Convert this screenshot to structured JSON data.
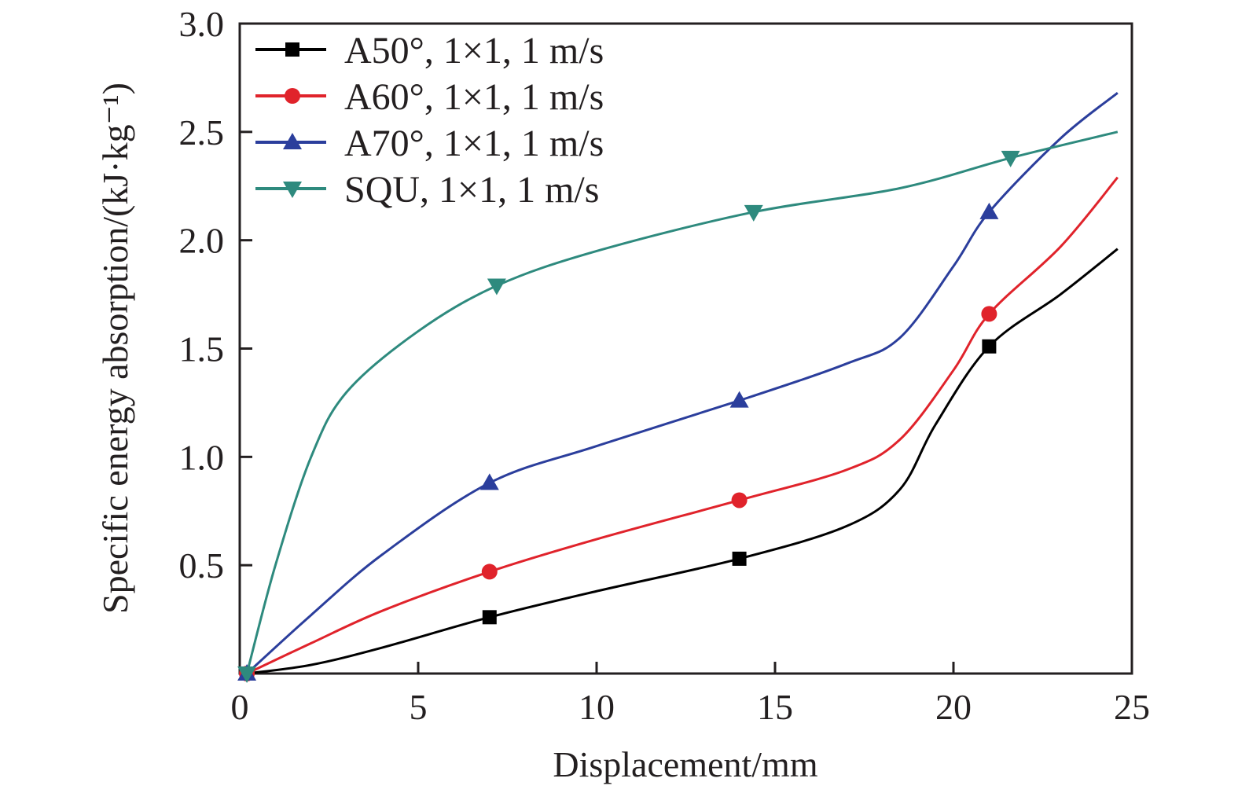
{
  "chart_data": {
    "type": "line",
    "title": "",
    "xlabel": "Displacement/mm",
    "ylabel": "Specific energy absorption/(kJ·kg⁻¹)",
    "xlim": [
      0,
      25
    ],
    "ylim": [
      0,
      3.0
    ],
    "xticks": [
      "0",
      "5",
      "10",
      "15",
      "20",
      "25"
    ],
    "yticks": [
      "0.5",
      "1.0",
      "1.5",
      "2.0",
      "2.5",
      "3.0"
    ],
    "grid": false,
    "legend_position": "top-left",
    "series": [
      {
        "name": "A50°, 1×1, 1 m/s",
        "color": "#000000",
        "marker": "square",
        "x": [
          0.2,
          2,
          4,
          7,
          10,
          14,
          17,
          18.5,
          19.5,
          21,
          23,
          24.6
        ],
        "y": [
          0,
          0.04,
          0.12,
          0.26,
          0.38,
          0.53,
          0.68,
          0.85,
          1.15,
          1.51,
          1.75,
          1.96
        ],
        "markers_x": [
          0.2,
          7,
          14,
          21
        ],
        "markers_y": [
          0,
          0.26,
          0.53,
          1.51
        ]
      },
      {
        "name": "A60°, 1×1, 1 m/s",
        "color": "#e0232b",
        "marker": "circle",
        "x": [
          0.2,
          2,
          4,
          7,
          10,
          14,
          17,
          18.5,
          20,
          21,
          23,
          24.6
        ],
        "y": [
          0,
          0.14,
          0.29,
          0.47,
          0.62,
          0.8,
          0.94,
          1.08,
          1.4,
          1.66,
          1.97,
          2.29
        ],
        "markers_x": [
          0.2,
          7,
          14,
          21
        ],
        "markers_y": [
          0,
          0.47,
          0.8,
          1.66
        ]
      },
      {
        "name": "A70°, 1×1, 1 m/s",
        "color": "#2b3e9c",
        "marker": "triangle-up",
        "x": [
          0.2,
          2,
          4,
          7,
          10,
          14,
          17,
          18.5,
          20,
          21,
          23,
          24.6
        ],
        "y": [
          0,
          0.27,
          0.55,
          0.88,
          1.05,
          1.26,
          1.43,
          1.55,
          1.88,
          2.13,
          2.47,
          2.68
        ],
        "markers_x": [
          0.2,
          7,
          14,
          21
        ],
        "markers_y": [
          0,
          0.88,
          1.26,
          2.13
        ]
      },
      {
        "name": "SQU, 1×1, 1 m/s",
        "color": "#2e8a7e",
        "marker": "triangle-down",
        "x": [
          0.2,
          1,
          2,
          3,
          5,
          7.2,
          10,
          14.4,
          18.5,
          21.6,
          24.6
        ],
        "y": [
          0,
          0.5,
          1.0,
          1.3,
          1.58,
          1.79,
          1.95,
          2.13,
          2.24,
          2.38,
          2.5
        ],
        "markers_x": [
          0.2,
          7.2,
          14.4,
          21.6
        ],
        "markers_y": [
          0,
          1.79,
          2.13,
          2.38
        ]
      }
    ]
  }
}
